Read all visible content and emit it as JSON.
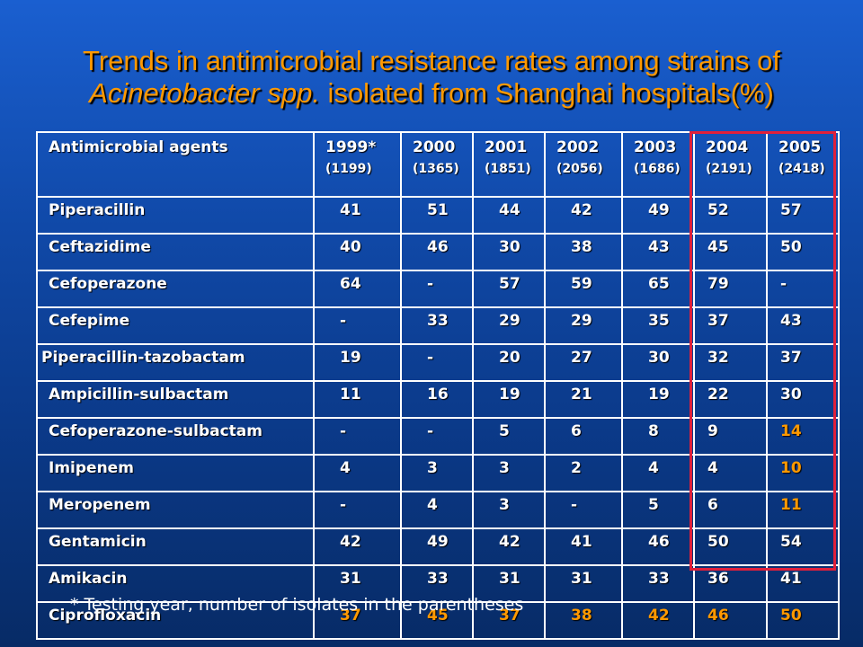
{
  "title": {
    "line1": "Trends in antimicrobial resistance rates among strains of",
    "line2_italic": "Acinetobacter spp.",
    "line2_rest": " isolated from Shanghai hospitals(%)"
  },
  "table": {
    "header_label": "Antimicrobial agents",
    "years": [
      {
        "year": "1999*",
        "count": "(1199)"
      },
      {
        "year": "2000",
        "count": "(1365)"
      },
      {
        "year": "2001",
        "count": "(1851)"
      },
      {
        "year": "2002",
        "count": "(2056)"
      },
      {
        "year": "2003",
        "count": "(1686)"
      },
      {
        "year": "2004",
        "count": "(2191)"
      },
      {
        "year": "2005",
        "count": "(2418)"
      }
    ],
    "rows": [
      {
        "agent": "Piperacillin",
        "values": [
          "41",
          "51",
          "44",
          "42",
          "49",
          "52",
          "57"
        ]
      },
      {
        "agent": "Ceftazidime",
        "values": [
          "40",
          "46",
          "30",
          "38",
          "43",
          "45",
          "50"
        ]
      },
      {
        "agent": "Cefoperazone",
        "values": [
          "64",
          "-",
          "57",
          "59",
          "65",
          "79",
          "-"
        ]
      },
      {
        "agent": "Cefepime",
        "values": [
          "-",
          "33",
          "29",
          "29",
          "35",
          "37",
          "43"
        ]
      },
      {
        "agent": "Piperacillin-tazobactam",
        "values": [
          "19",
          "-",
          "20",
          "27",
          "30",
          "32",
          "37"
        ]
      },
      {
        "agent": "Ampicillin-sulbactam",
        "values": [
          "11",
          "16",
          "19",
          "21",
          "19",
          "22",
          "30"
        ]
      },
      {
        "agent": "Cefoperazone-sulbactam",
        "values": [
          "-",
          "-",
          "5",
          "6",
          "8",
          "9",
          "14"
        ]
      },
      {
        "agent": "Imipenem",
        "values": [
          "4",
          "3",
          "3",
          "2",
          "4",
          "4",
          "10"
        ]
      },
      {
        "agent": "Meropenem",
        "values": [
          "-",
          "4",
          "3",
          "-",
          "5",
          "6",
          "11"
        ]
      },
      {
        "agent": "Gentamicin",
        "values": [
          "42",
          "49",
          "42",
          "41",
          "46",
          "50",
          "54"
        ]
      },
      {
        "agent": "Amikacin",
        "values": [
          "31",
          "33",
          "31",
          "31",
          "33",
          "36",
          "41"
        ]
      },
      {
        "agent": "Ciprofloxacin",
        "values": [
          "37",
          "45",
          "37",
          "38",
          "42",
          "46",
          "50"
        ]
      }
    ],
    "highlight_color": "#ff9900",
    "highlight_cells": [
      {
        "row": 6,
        "col": 6
      },
      {
        "row": 7,
        "col": 6
      },
      {
        "row": 8,
        "col": 6
      },
      {
        "row": 11,
        "col": 0
      },
      {
        "row": 11,
        "col": 1
      },
      {
        "row": 11,
        "col": 2
      },
      {
        "row": 11,
        "col": 3
      },
      {
        "row": 11,
        "col": 4
      },
      {
        "row": 11,
        "col": 5
      },
      {
        "row": 11,
        "col": 6
      }
    ],
    "box_color": "#e0203a"
  },
  "footnote": "* Testing year, number of isolates in the parentheses"
}
